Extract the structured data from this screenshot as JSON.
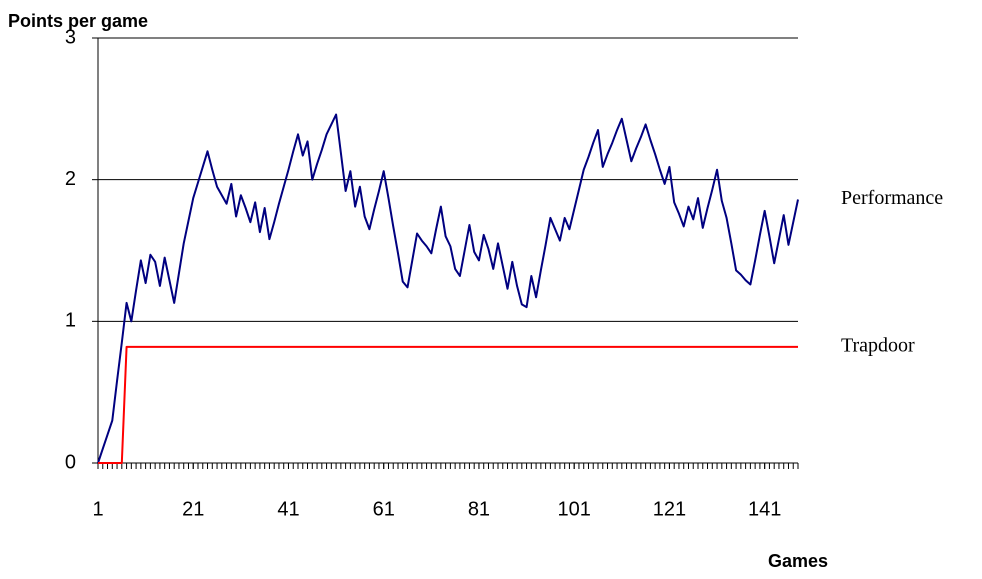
{
  "chart_data": {
    "type": "line",
    "title": "Points per game",
    "x_label": "Games",
    "x": [
      1,
      2,
      3,
      4,
      5,
      6,
      7,
      8,
      9,
      10,
      11,
      12,
      13,
      14,
      15,
      16,
      17,
      18,
      19,
      20,
      21,
      22,
      23,
      24,
      25,
      26,
      27,
      28,
      29,
      30,
      31,
      32,
      33,
      34,
      35,
      36,
      37,
      38,
      39,
      40,
      41,
      42,
      43,
      44,
      45,
      46,
      47,
      48,
      49,
      50,
      51,
      52,
      53,
      54,
      55,
      56,
      57,
      58,
      59,
      60,
      61,
      62,
      63,
      64,
      65,
      66,
      67,
      68,
      69,
      70,
      71,
      72,
      73,
      74,
      75,
      76,
      77,
      78,
      79,
      80,
      81,
      82,
      83,
      84,
      85,
      86,
      87,
      88,
      89,
      90,
      91,
      92,
      93,
      94,
      95,
      96,
      97,
      98,
      99,
      100,
      101,
      102,
      103,
      104,
      105,
      106,
      107,
      108,
      109,
      110,
      111,
      112,
      113,
      114,
      115,
      116,
      117,
      118,
      119,
      120,
      121,
      122,
      123,
      124,
      125,
      126,
      127,
      128,
      129,
      130,
      131,
      132,
      133,
      134,
      135,
      136,
      137,
      138,
      139,
      140,
      141,
      142,
      143,
      144,
      145,
      146,
      147,
      148
    ],
    "series": [
      {
        "name": "Performance",
        "color": "#000080",
        "values": [
          0,
          0.1,
          0.2,
          0.3,
          0.58,
          0.85,
          1.13,
          1.0,
          1.22,
          1.43,
          1.27,
          1.47,
          1.42,
          1.25,
          1.45,
          1.29,
          1.13,
          1.34,
          1.55,
          1.71,
          1.87,
          1.98,
          2.09,
          2.2,
          2.07,
          1.95,
          1.89,
          1.83,
          1.97,
          1.74,
          1.89,
          1.8,
          1.7,
          1.84,
          1.63,
          1.8,
          1.58,
          1.7,
          1.83,
          1.95,
          2.07,
          2.2,
          2.32,
          2.17,
          2.27,
          2.0,
          2.11,
          2.21,
          2.32,
          2.39,
          2.46,
          2.19,
          1.92,
          2.06,
          1.81,
          1.95,
          1.74,
          1.65,
          1.79,
          1.92,
          2.06,
          1.87,
          1.67,
          1.48,
          1.28,
          1.24,
          1.43,
          1.62,
          1.57,
          1.53,
          1.48,
          1.65,
          1.81,
          1.6,
          1.53,
          1.37,
          1.32,
          1.5,
          1.68,
          1.49,
          1.43,
          1.61,
          1.51,
          1.37,
          1.55,
          1.39,
          1.23,
          1.42,
          1.25,
          1.12,
          1.1,
          1.32,
          1.17,
          1.36,
          1.54,
          1.73,
          1.65,
          1.57,
          1.73,
          1.65,
          1.79,
          1.93,
          2.07,
          2.16,
          2.26,
          2.35,
          2.09,
          2.18,
          2.26,
          2.35,
          2.43,
          2.28,
          2.13,
          2.22,
          2.3,
          2.39,
          2.28,
          2.18,
          2.07,
          1.97,
          2.09,
          1.84,
          1.76,
          1.67,
          1.81,
          1.72,
          1.87,
          1.66,
          1.8,
          1.93,
          2.07,
          1.85,
          1.73,
          1.55,
          1.36,
          1.33,
          1.29,
          1.26,
          1.43,
          1.61,
          1.78,
          1.6,
          1.41,
          1.58,
          1.75,
          1.54,
          1.7,
          1.86
        ]
      },
      {
        "name": "Trapdoor",
        "color": "#ff0000",
        "values": [
          0,
          0,
          0,
          0,
          0,
          0,
          0.82,
          0.82,
          0.82,
          0.82,
          0.82,
          0.82,
          0.82,
          0.82,
          0.82,
          0.82,
          0.82,
          0.82,
          0.82,
          0.82,
          0.82,
          0.82,
          0.82,
          0.82,
          0.82,
          0.82,
          0.82,
          0.82,
          0.82,
          0.82,
          0.82,
          0.82,
          0.82,
          0.82,
          0.82,
          0.82,
          0.82,
          0.82,
          0.82,
          0.82,
          0.82,
          0.82,
          0.82,
          0.82,
          0.82,
          0.82,
          0.82,
          0.82,
          0.82,
          0.82,
          0.82,
          0.82,
          0.82,
          0.82,
          0.82,
          0.82,
          0.82,
          0.82,
          0.82,
          0.82,
          0.82,
          0.82,
          0.82,
          0.82,
          0.82,
          0.82,
          0.82,
          0.82,
          0.82,
          0.82,
          0.82,
          0.82,
          0.82,
          0.82,
          0.82,
          0.82,
          0.82,
          0.82,
          0.82,
          0.82,
          0.82,
          0.82,
          0.82,
          0.82,
          0.82,
          0.82,
          0.82,
          0.82,
          0.82,
          0.82,
          0.82,
          0.82,
          0.82,
          0.82,
          0.82,
          0.82,
          0.82,
          0.82,
          0.82,
          0.82,
          0.82,
          0.82,
          0.82,
          0.82,
          0.82,
          0.82,
          0.82,
          0.82,
          0.82,
          0.82,
          0.82,
          0.82,
          0.82,
          0.82,
          0.82,
          0.82,
          0.82,
          0.82,
          0.82,
          0.82,
          0.82,
          0.82,
          0.82,
          0.82,
          0.82,
          0.82,
          0.82,
          0.82,
          0.82,
          0.82,
          0.82,
          0.82,
          0.82,
          0.82,
          0.82,
          0.82,
          0.82,
          0.82,
          0.82,
          0.82,
          0.82,
          0.82,
          0.82,
          0.82,
          0.82,
          0.82,
          0.82,
          0.82
        ]
      }
    ],
    "xlim": [
      1,
      148
    ],
    "xticks": [
      1,
      21,
      41,
      61,
      81,
      101,
      121,
      141
    ],
    "ylim": [
      0,
      3
    ],
    "yticks": [
      0,
      1,
      2,
      3
    ],
    "grid": true
  }
}
